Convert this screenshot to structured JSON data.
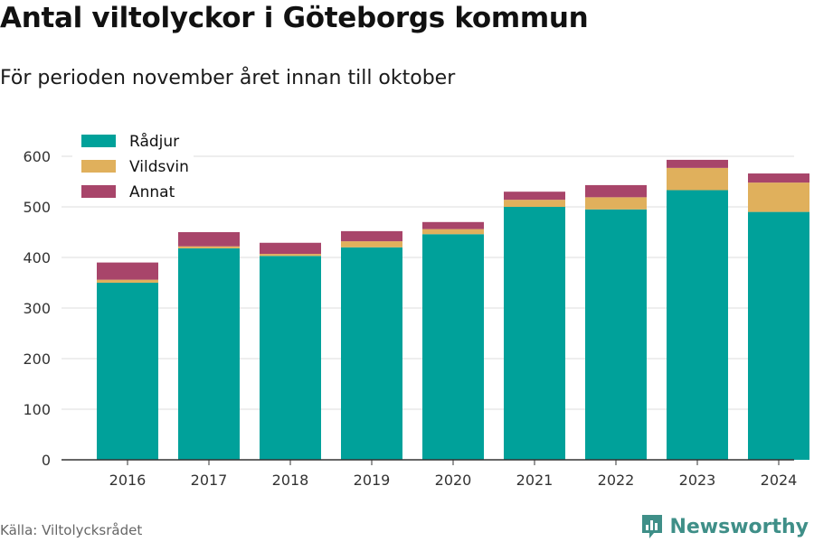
{
  "header": {
    "title": "Antal viltolyckor i Göteborgs kommun",
    "subtitle": "För perioden november året innan till oktober"
  },
  "footer": {
    "source": "Källa: Viltolycksrådet",
    "brand": "Newsworthy",
    "brand_icon": "bar-chart-logo-icon"
  },
  "colors": {
    "Rådjur": "#00a19a",
    "Vildsvin": "#e0b05c",
    "Annat": "#a8456a",
    "axis": "#333333",
    "grid": "#dddddd",
    "brand": "#3f8f88"
  },
  "chart_data": {
    "type": "bar",
    "stacked": true,
    "categories": [
      "2016",
      "2017",
      "2018",
      "2019",
      "2020",
      "2021",
      "2022",
      "2023",
      "2024"
    ],
    "series": [
      {
        "name": "Rådjur",
        "values": [
          350,
          418,
          403,
          420,
          446,
          500,
          495,
          533,
          490
        ]
      },
      {
        "name": "Vildsvin",
        "values": [
          6,
          4,
          4,
          12,
          10,
          14,
          24,
          44,
          58
        ]
      },
      {
        "name": "Annat",
        "values": [
          34,
          28,
          22,
          20,
          14,
          16,
          24,
          16,
          18
        ]
      }
    ],
    "yticks": [
      0,
      100,
      200,
      300,
      400,
      500,
      600
    ],
    "ylim": [
      0,
      640
    ],
    "grid": true,
    "legend": "top-left"
  }
}
